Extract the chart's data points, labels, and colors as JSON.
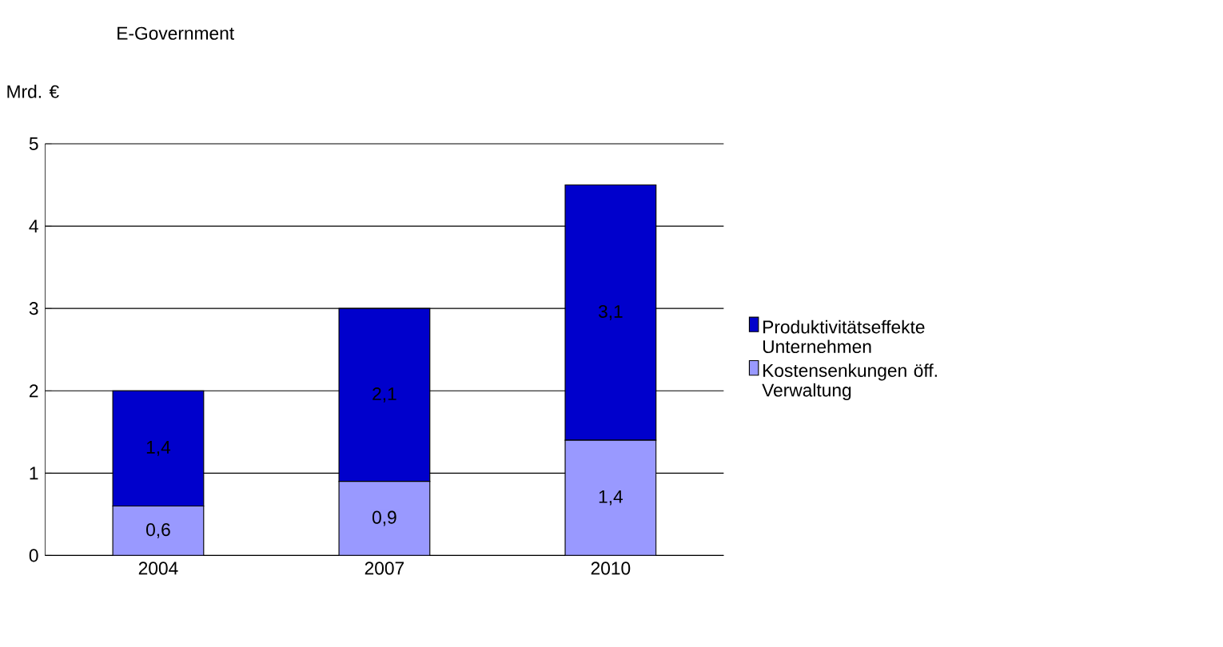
{
  "chart_data": {
    "type": "bar",
    "stacked": true,
    "title": "E-Government",
    "ylabel": "Mrd. €",
    "categories": [
      "2004",
      "2007",
      "2010"
    ],
    "series": [
      {
        "name": "Kostensenkungen öff. Verwaltung",
        "color": "#9999ff",
        "values": [
          0.6,
          0.9,
          1.4
        ],
        "value_labels": [
          "0,6",
          "0,9",
          "1,4"
        ]
      },
      {
        "name": "Produktivitätseffekte Unternehmen",
        "color": "#0000cc",
        "values": [
          1.4,
          2.1,
          3.1
        ],
        "value_labels": [
          "1,4",
          "2,1",
          "3,1"
        ]
      }
    ],
    "ylim": [
      0,
      5
    ],
    "yticks": [
      0,
      1,
      2,
      3,
      4,
      5
    ],
    "grid": "y",
    "legend": "right"
  }
}
